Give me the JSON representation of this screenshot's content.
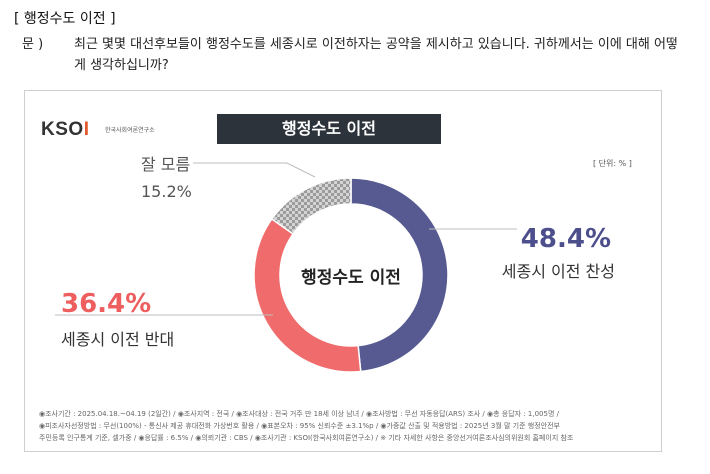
{
  "header": {
    "title": "[ 행정수도 이전 ]",
    "question_label": "문 )",
    "question_text": "최근 몇몇 대선후보들이 행정수도를 세종시로 이전하자는 공약을 제시하고 있습니다. 귀하께서는 이에 대해 어떻게 생각하십니까?"
  },
  "brand": {
    "logo_text": "KSOI",
    "logo_sub": "한국사회여론연구소"
  },
  "chart": {
    "banner_title": "행정수도 이전",
    "unit": "[ 단위: % ]",
    "center_label": "행정수도 이전"
  },
  "chart_data": {
    "type": "pie",
    "variant": "donut",
    "title": "행정수도 이전",
    "unit": "%",
    "series": [
      {
        "name": "세종시 이전 찬성",
        "value": 48.4,
        "label": "48.4%",
        "color": "#565a91"
      },
      {
        "name": "세종시 이전 반대",
        "value": 36.4,
        "label": "36.4%",
        "color": "#f06b6b"
      },
      {
        "name": "잘 모름",
        "value": 15.2,
        "label": "15.2%",
        "color": "#bdbdbd",
        "pattern": "checker"
      }
    ]
  },
  "footer": {
    "line1": "◉조사기간 : 2025.04.18.~04.19 (2일간) / ◉조사지역 : 전국 / ◉조사대상 : 전국 거주 만 18세 이상 남녀 / ◉조사방법 : 무선 자동응답(ARS) 조사 / ◉총 응답자 : 1,005명 /",
    "line2": "◉피조사자선정방법 : 무선(100%) - 통신사 제공 휴대전화 가상번호 활용 / ◉표본오차 : 95% 신뢰수준 ±3.1%p / ◉가중값 산출 및 적용방법 : 2025년 3월 말 기준 행정안전부",
    "line3": "주민등록 인구통계 기준, 셀가중 / ◉응답률 : 6.5% / ◉의뢰기관 : CBS / ◉조사기관 : KSOI(한국사회여론연구소) / ※ 기타 자세한 사항은 중앙선거여론조사심의위원회 홈페이지 참조"
  }
}
